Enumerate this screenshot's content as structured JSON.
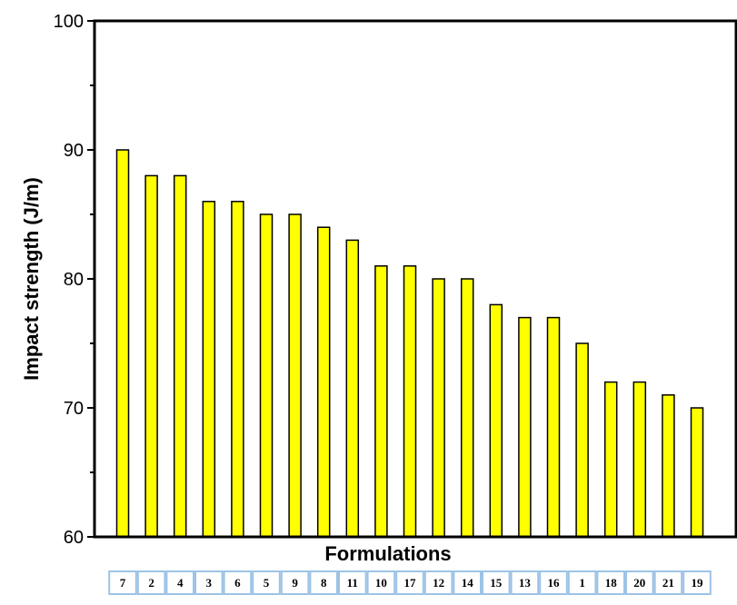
{
  "chart_data": {
    "type": "bar",
    "title": "",
    "xlabel": "Formulations",
    "ylabel": "Impact strength (J/m)",
    "ylim": [
      60,
      100
    ],
    "yticks": [
      "60",
      "70",
      "80",
      "90",
      "100"
    ],
    "categories": [
      "7",
      "2",
      "4",
      "3",
      "6",
      "5",
      "9",
      "8",
      "11",
      "10",
      "17",
      "12",
      "14",
      "15",
      "13",
      "16",
      "1",
      "18",
      "20",
      "21",
      "19"
    ],
    "values": [
      90,
      88,
      88,
      86,
      86,
      85,
      85,
      84,
      83,
      81,
      81,
      80,
      80,
      78,
      77,
      77,
      75,
      72,
      72,
      71,
      70
    ],
    "bar_color": "#ffff00",
    "bar_edge_color": "#000000",
    "category_table_border_color": "#9dc3e6",
    "grid": false,
    "legend": "none"
  }
}
